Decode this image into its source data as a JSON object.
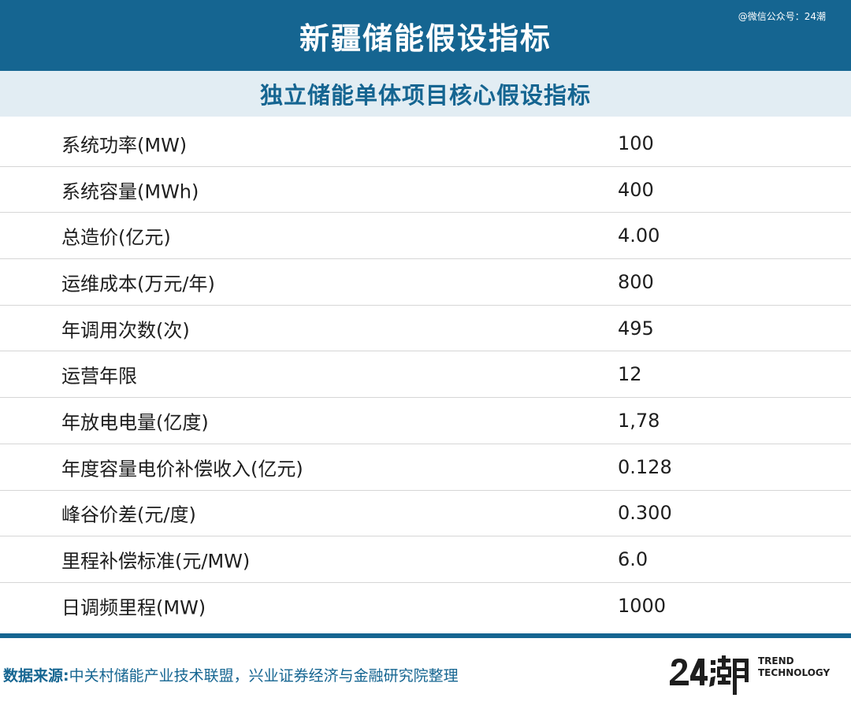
{
  "header": {
    "title": "新疆储能假设指标",
    "watermark": "@微信公众号：24潮"
  },
  "subheader": {
    "title": "独立储能单体项目核心假设指标"
  },
  "rows": [
    {
      "label": "系统功率(MW)",
      "value": "100"
    },
    {
      "label": "系统容量(MWh)",
      "value": "400"
    },
    {
      "label": "总造价(亿元)",
      "value": "4.00"
    },
    {
      "label": "运维成本(万元/年)",
      "value": "800"
    },
    {
      "label": "年调用次数(次)",
      "value": "495"
    },
    {
      "label": "运营年限",
      "value": "12"
    },
    {
      "label": "年放电电量(亿度)",
      "value": "1,78"
    },
    {
      "label": "年度容量电价补偿收入(亿元)",
      "value": "0.128"
    },
    {
      "label": "峰谷价差(元/度)",
      "value": "0.300"
    },
    {
      "label": "里程补偿标准(元/MW)",
      "value": "6.0"
    },
    {
      "label": "日调频里程(MW)",
      "value": "1000"
    }
  ],
  "footer": {
    "source_label": "数据来源:",
    "source_text": "中关村储能产业技术联盟，兴业证券经济与金融研究院整理",
    "brand": {
      "logo_text": "24潮",
      "line1": "TREND",
      "line2": "TECHNOLOGY"
    }
  },
  "colors": {
    "primary": "#156591",
    "subheader_bg": "#e2edf3",
    "row_border": "#d6d6d6",
    "text": "#1e1e1e"
  }
}
